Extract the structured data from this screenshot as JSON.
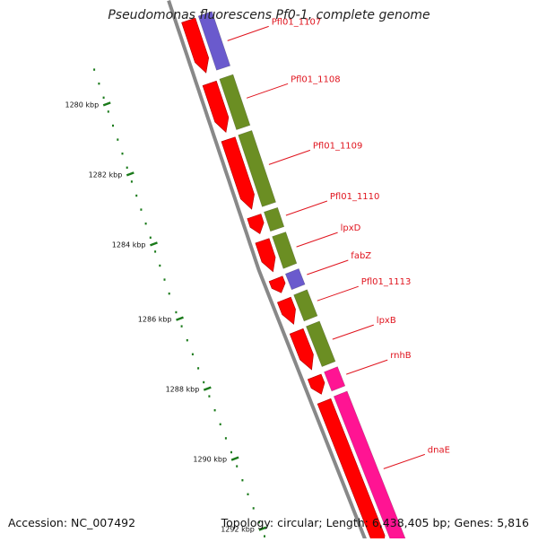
{
  "title": "Pseudomonas fluorescens Pf0-1, complete genome",
  "footer": {
    "accession": "Accession: NC_007492",
    "topology": "Topology: circular; Length: 6,438,405 bp; Genes: 5,816"
  },
  "colors": {
    "backbone": "#888888",
    "strand_arrow": "#ff0000",
    "cog_blue": "#6a5acd",
    "cog_olive": "#6b8e23",
    "cog_pink": "#ff1493",
    "tick": "#1a7a1a",
    "label": "#e0141e"
  },
  "axis": {
    "unit": "kbp",
    "labeled_ticks": [
      {
        "kbp": 1280,
        "label": "1280 kbp"
      },
      {
        "kbp": 1282,
        "label": "1282 kbp"
      },
      {
        "kbp": 1284,
        "label": "1284 kbp"
      },
      {
        "kbp": 1286,
        "label": "1286 kbp"
      },
      {
        "kbp": 1288,
        "label": "1288 kbp"
      },
      {
        "kbp": 1290,
        "label": "1290 kbp"
      },
      {
        "kbp": 1292,
        "label": "1292 kbp"
      }
    ]
  },
  "genes": [
    {
      "name": "Pfl01_1107",
      "start": 1278.5,
      "end": 1280.1,
      "cog": "blue"
    },
    {
      "name": "Pfl01_1108",
      "start": 1280.3,
      "end": 1281.8,
      "cog": "olive"
    },
    {
      "name": "Pfl01_1109",
      "start": 1281.9,
      "end": 1284.0,
      "cog": "olive"
    },
    {
      "name": "Pfl01_1110",
      "start": 1284.1,
      "end": 1284.7,
      "cog": "olive"
    },
    {
      "name": "lpxD",
      "start": 1284.8,
      "end": 1285.8,
      "cog": "olive"
    },
    {
      "name": "fabZ",
      "start": 1285.9,
      "end": 1286.4,
      "cog": "blue"
    },
    {
      "name": "Pfl01_1113",
      "start": 1286.5,
      "end": 1287.3,
      "cog": "olive"
    },
    {
      "name": "lpxB",
      "start": 1287.4,
      "end": 1288.6,
      "cog": "olive"
    },
    {
      "name": "rnhB",
      "start": 1288.7,
      "end": 1289.3,
      "cog": "pink"
    },
    {
      "name": "dnaE",
      "start": 1289.4,
      "end": 1294.0,
      "cog": "pink"
    }
  ]
}
